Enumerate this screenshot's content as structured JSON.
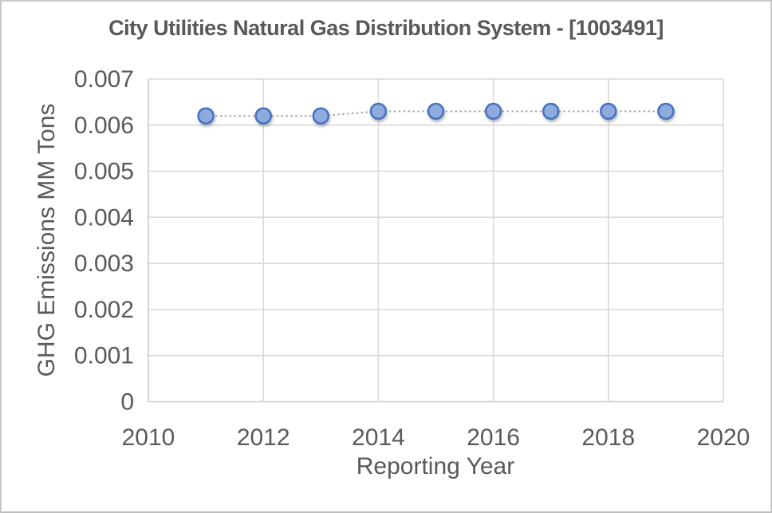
{
  "chart_data": {
    "type": "scatter",
    "title": "City Utilities Natural Gas Distribution System - [1003491]",
    "xlabel": "Reporting Year",
    "ylabel": "GHG Emissions MM Tons",
    "x": [
      2011,
      2012,
      2013,
      2014,
      2015,
      2016,
      2017,
      2018,
      2019
    ],
    "values": [
      0.0062,
      0.0062,
      0.0062,
      0.0063,
      0.0063,
      0.0063,
      0.0063,
      0.0063,
      0.0063
    ],
    "series_name": "GHG Emissions",
    "xlim": [
      2010,
      2020
    ],
    "ylim": [
      0,
      0.007
    ],
    "x_ticks": [
      2010,
      2012,
      2014,
      2016,
      2018,
      2020
    ],
    "x_tick_labels": [
      "2010",
      "2012",
      "2014",
      "2016",
      "2018",
      "2020"
    ],
    "y_ticks": [
      0,
      0.001,
      0.002,
      0.003,
      0.004,
      0.005,
      0.006,
      0.007
    ],
    "y_tick_labels": [
      "0",
      "0.001",
      "0.002",
      "0.003",
      "0.004",
      "0.005",
      "0.006",
      "0.007"
    ],
    "grid": true,
    "legend": false,
    "marker_shape": "circle",
    "line_style": "dotted",
    "colors": {
      "marker_fill": "#8FAADC",
      "marker_stroke": "#4472C4",
      "connector_line": "#A6A6A6",
      "gridline": "#D9D9D9",
      "axis_line": "#CFCFCF",
      "text": "#595959",
      "background": "#FFFFFF",
      "frame_border": "#C9C9C9"
    }
  }
}
